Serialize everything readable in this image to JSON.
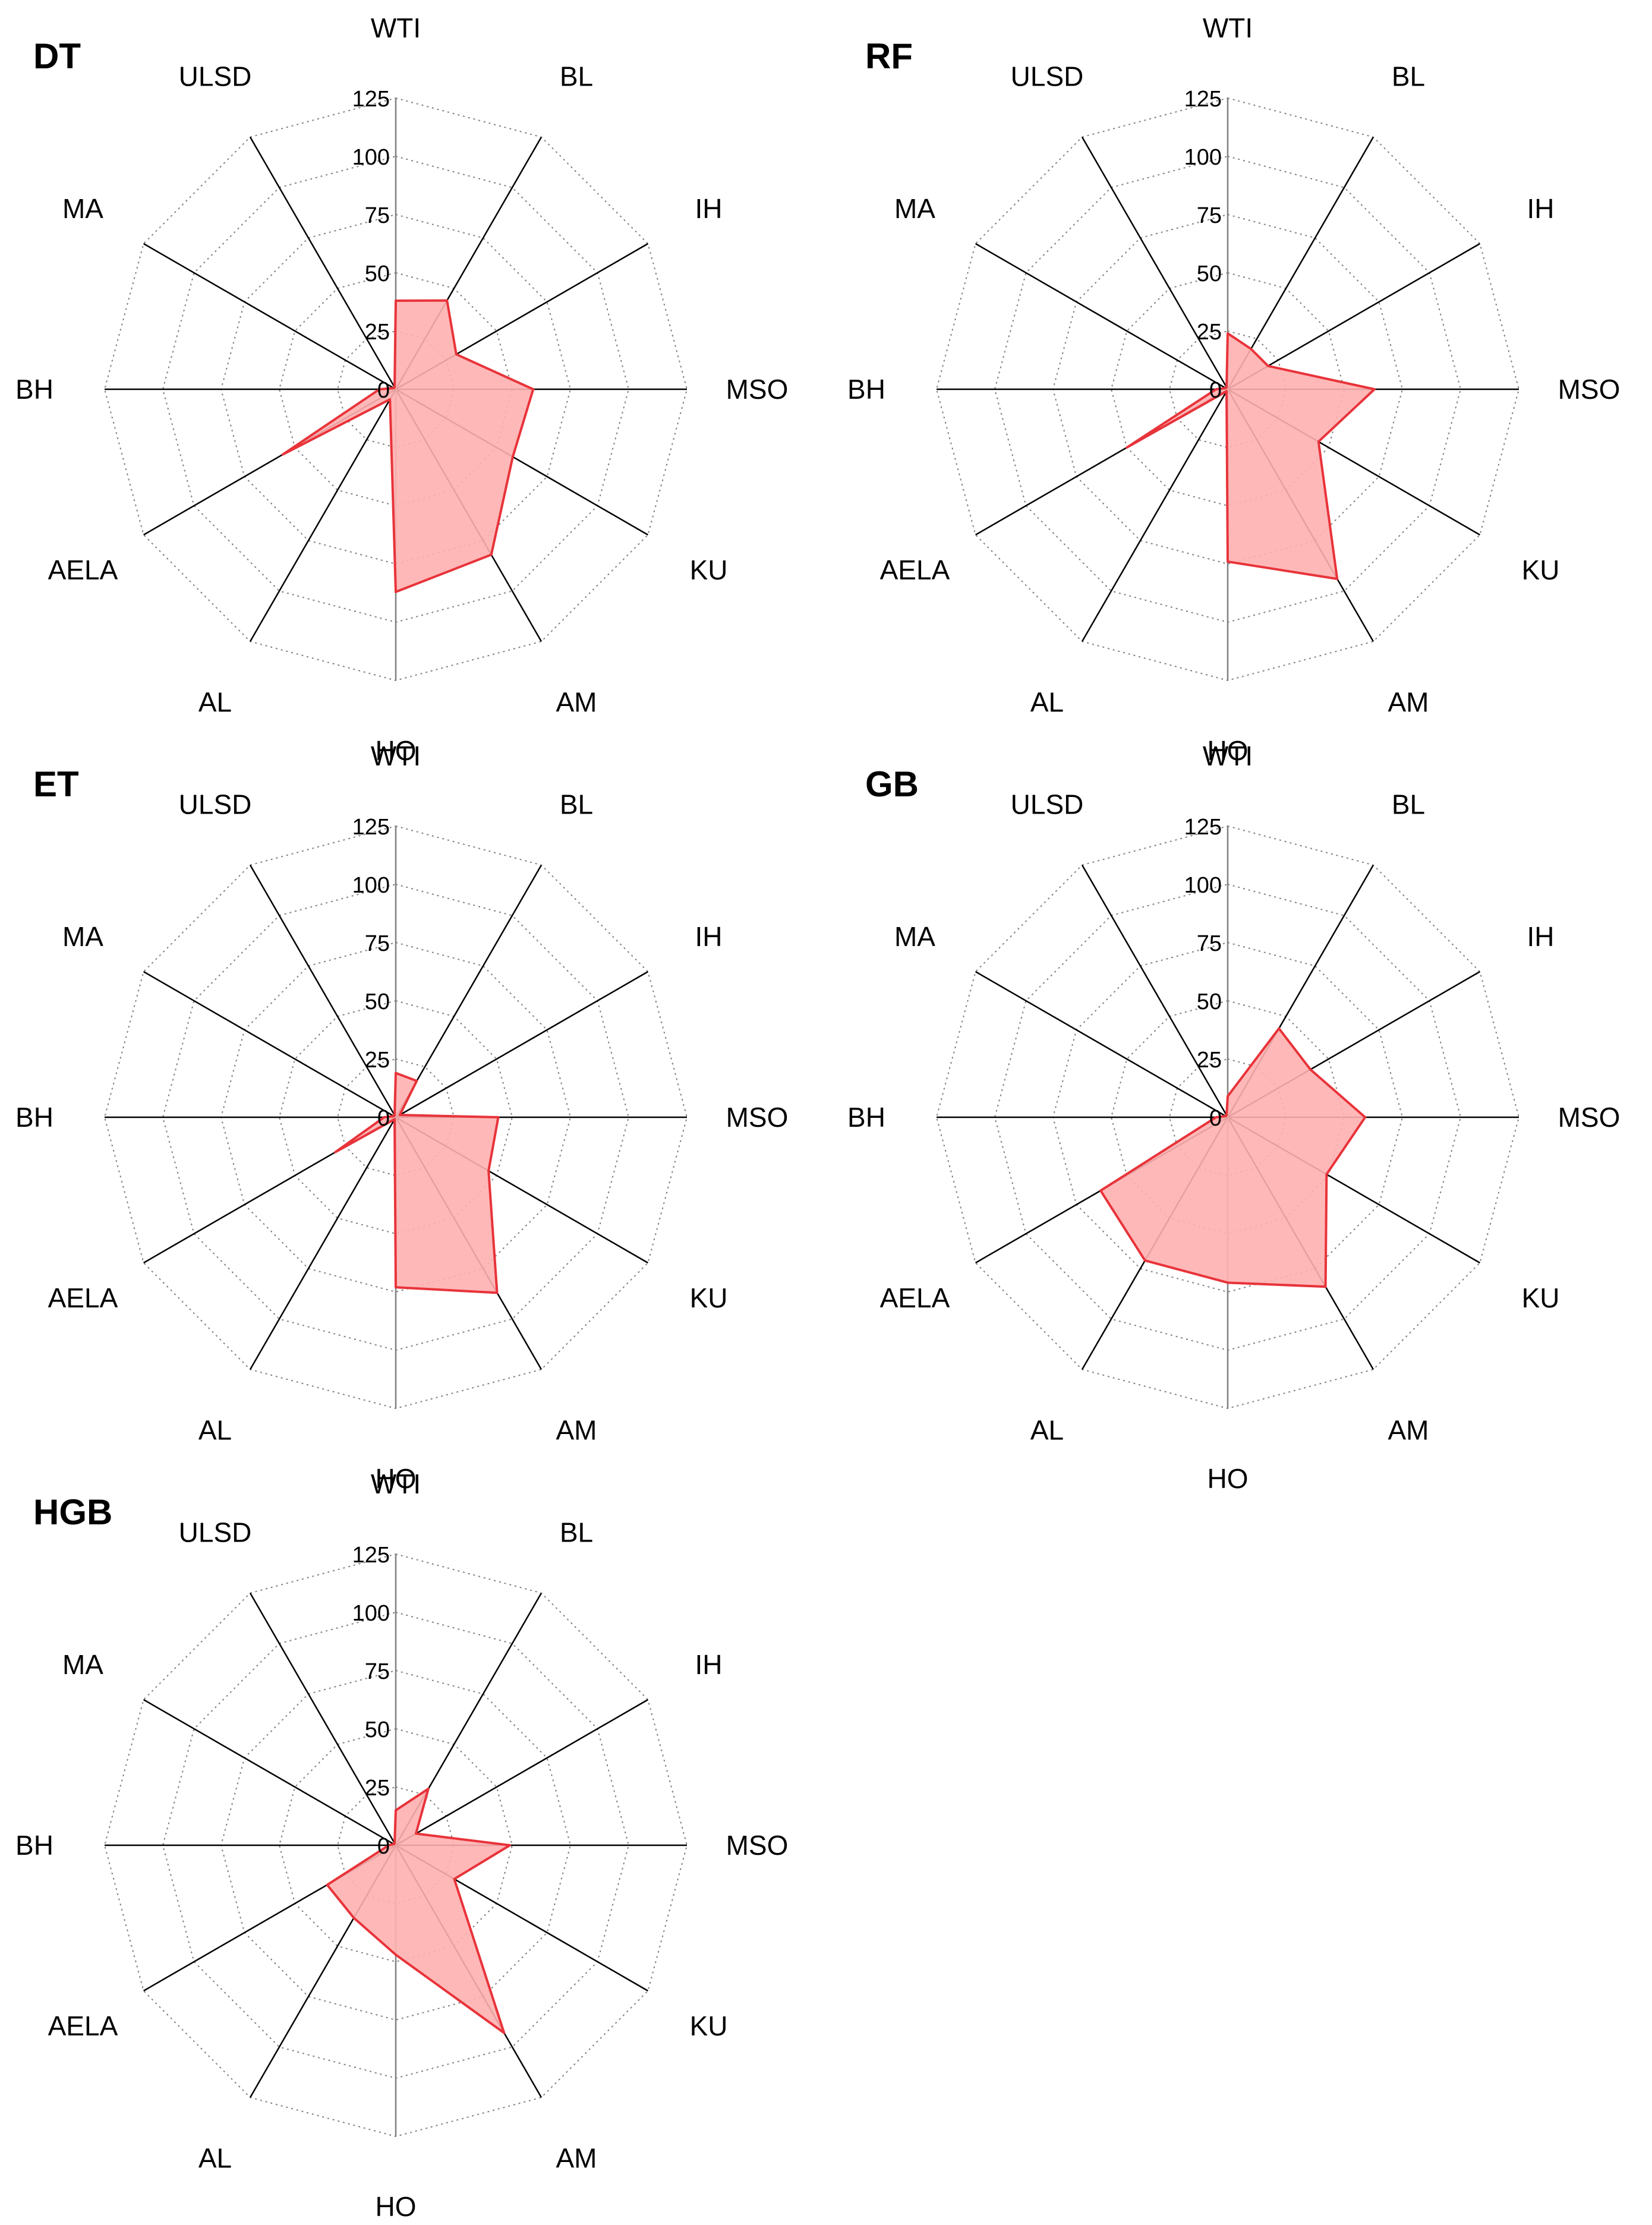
{
  "colors": {
    "fill": "#ffb0b0",
    "stroke": "#e8333a",
    "axis": "#000000",
    "grid": "#808080",
    "text": "#000000"
  },
  "chart_data": [
    {
      "type": "radar",
      "title": "DT",
      "axes": [
        "WTI",
        "BL",
        "IH",
        "MSO",
        "KU",
        "AM",
        "HO",
        "AL",
        "AELA",
        "BH",
        "MA",
        "ULSD"
      ],
      "rticks": [
        0,
        25,
        50,
        75,
        100,
        125
      ],
      "rlim": [
        0,
        125
      ],
      "values": [
        38,
        44,
        30,
        59,
        58,
        82,
        87,
        5,
        56,
        7,
        1,
        1
      ]
    },
    {
      "type": "radar",
      "title": "RF",
      "axes": [
        "WTI",
        "BL",
        "IH",
        "MSO",
        "KU",
        "AM",
        "HO",
        "AL",
        "AELA",
        "BH",
        "MA",
        "ULSD"
      ],
      "rticks": [
        0,
        25,
        50,
        75,
        100,
        125
      ],
      "rlim": [
        0,
        125
      ],
      "values": [
        24,
        20,
        20,
        63,
        45,
        94,
        74,
        1,
        50,
        5,
        1,
        1
      ]
    },
    {
      "type": "radar",
      "title": "ET",
      "axes": [
        "WTI",
        "BL",
        "IH",
        "MSO",
        "KU",
        "AM",
        "HO",
        "AL",
        "AELA",
        "BH",
        "MA",
        "ULSD"
      ],
      "rticks": [
        0,
        25,
        50,
        75,
        100,
        125
      ],
      "rlim": [
        0,
        125
      ],
      "values": [
        19,
        18,
        2,
        44,
        46,
        87,
        73,
        1,
        30,
        5,
        1,
        1
      ]
    },
    {
      "type": "radar",
      "title": "GB",
      "axes": [
        "WTI",
        "BL",
        "IH",
        "MSO",
        "KU",
        "AM",
        "HO",
        "AL",
        "AELA",
        "BH",
        "MA",
        "ULSD"
      ],
      "rticks": [
        0,
        25,
        50,
        75,
        100,
        125
      ],
      "rlim": [
        0,
        125
      ],
      "values": [
        9,
        44,
        41,
        59,
        49,
        84,
        71,
        71,
        63,
        5,
        1,
        1
      ]
    },
    {
      "type": "radar",
      "title": "HGB",
      "axes": [
        "WTI",
        "BL",
        "IH",
        "MSO",
        "KU",
        "AM",
        "HO",
        "AL",
        "AELA",
        "BH",
        "MA",
        "ULSD"
      ],
      "rticks": [
        0,
        25,
        50,
        75,
        100,
        125
      ],
      "rlim": [
        0,
        125
      ],
      "values": [
        15,
        28,
        10,
        49,
        29,
        93,
        47,
        36,
        34,
        3,
        1,
        1
      ]
    }
  ]
}
